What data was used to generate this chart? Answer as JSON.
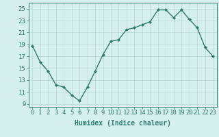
{
  "x": [
    0,
    1,
    2,
    3,
    4,
    5,
    6,
    7,
    8,
    9,
    10,
    11,
    12,
    13,
    14,
    15,
    16,
    17,
    18,
    19,
    20,
    21,
    22,
    23
  ],
  "y": [
    18.8,
    16.0,
    14.5,
    12.2,
    11.8,
    10.5,
    9.5,
    11.8,
    14.5,
    17.3,
    19.5,
    19.8,
    21.5,
    21.8,
    22.3,
    22.8,
    24.8,
    24.8,
    23.5,
    24.8,
    23.2,
    21.8,
    18.5,
    17.0
  ],
  "xlabel": "Humidex (Indice chaleur)",
  "ylabel_ticks": [
    9,
    11,
    13,
    15,
    17,
    19,
    21,
    23,
    25
  ],
  "xticks": [
    0,
    1,
    2,
    3,
    4,
    5,
    6,
    7,
    8,
    9,
    10,
    11,
    12,
    13,
    14,
    15,
    16,
    17,
    18,
    19,
    20,
    21,
    22,
    23
  ],
  "ylim": [
    8.5,
    26.0
  ],
  "xlim": [
    -0.5,
    23.5
  ],
  "line_color": "#2d7d6e",
  "marker": "D",
  "marker_size": 2.0,
  "bg_color": "#d6f0ed",
  "grid_color": "#b8d8d2",
  "axis_color": "#2d7d6e",
  "label_color": "#2d7d6e",
  "xlabel_fontsize": 7,
  "tick_fontsize": 6.5,
  "line_width": 1.0
}
